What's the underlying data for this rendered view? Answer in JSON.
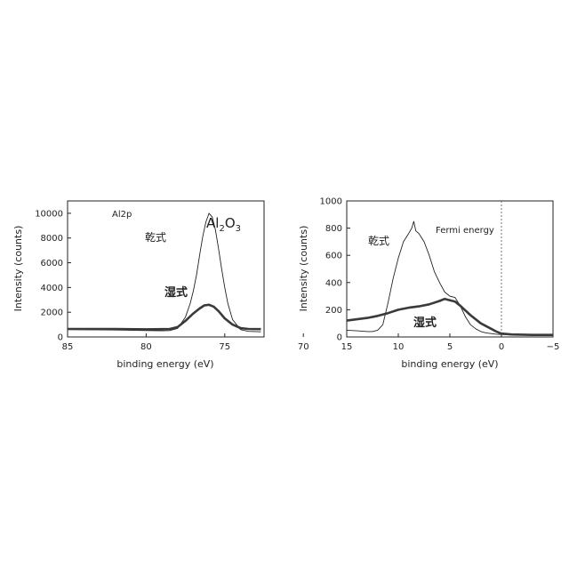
{
  "chart_data": [
    {
      "type": "line",
      "title": "",
      "xlabel": "binding energy (eV)",
      "ylabel": "Intensity (counts)",
      "xlim": [
        85,
        72.5
      ],
      "ylim": [
        0,
        11000
      ],
      "x_ticks": [
        "85",
        "80",
        "75",
        "70"
      ],
      "y_ticks": [
        "0",
        "2000",
        "4000",
        "6000",
        "8000",
        "10000"
      ],
      "annotations": {
        "core_level": "Al2p",
        "species_main": "Al",
        "species_sub1": "2",
        "species_o": "O",
        "species_sub2": "3",
        "dry_label": "乾式",
        "wet_label": "湿式"
      },
      "series": [
        {
          "name": "乾式",
          "style": "thin",
          "x": [
            85,
            82,
            80,
            79,
            78.5,
            78,
            77.5,
            77.2,
            77,
            76.8,
            76.6,
            76.4,
            76.2,
            76.0,
            75.8,
            75.6,
            75.4,
            75.2,
            75.0,
            74.8,
            74.5,
            74.0,
            73.5,
            72.7
          ],
          "y": [
            600,
            560,
            520,
            500,
            520,
            700,
            1600,
            2700,
            3700,
            5000,
            6600,
            8100,
            9300,
            10000,
            9700,
            8700,
            7200,
            5500,
            4000,
            2700,
            1400,
            600,
            450,
            420
          ]
        },
        {
          "name": "湿式",
          "style": "thick",
          "x": [
            85,
            82,
            80,
            78.5,
            78,
            77.5,
            77,
            76.6,
            76.3,
            76.0,
            75.7,
            75.4,
            75.0,
            74.5,
            74.0,
            73.5,
            72.7
          ],
          "y": [
            650,
            650,
            620,
            650,
            800,
            1300,
            1900,
            2300,
            2550,
            2600,
            2450,
            2100,
            1500,
            1000,
            720,
            650,
            630
          ]
        }
      ]
    },
    {
      "type": "line",
      "title": "",
      "xlabel": "binding energy (eV)",
      "ylabel": "Intensity (counts)",
      "xlim": [
        15,
        -5
      ],
      "ylim": [
        0,
        1000
      ],
      "x_ticks": [
        "15",
        "10",
        "5",
        "0",
        "−5"
      ],
      "y_ticks": [
        "0",
        "200",
        "400",
        "600",
        "800",
        "1000"
      ],
      "fermi_energy": 0,
      "annotations": {
        "fermi_label": "Fermi energy",
        "dry_label": "乾式",
        "wet_label": "湿式"
      },
      "series": [
        {
          "name": "乾式",
          "style": "thin",
          "x": [
            15,
            14,
            13,
            12.5,
            12,
            11.5,
            11,
            10.5,
            10,
            9.5,
            9,
            8.7,
            8.5,
            8.3,
            8,
            7.5,
            7,
            6.5,
            6,
            5.5,
            5,
            4.5,
            4,
            3.5,
            3,
            2.5,
            2,
            1.5,
            1,
            0.5,
            0,
            -1,
            -3,
            -5
          ],
          "y": [
            50,
            45,
            40,
            40,
            50,
            90,
            250,
            430,
            580,
            700,
            760,
            800,
            850,
            780,
            760,
            700,
            600,
            480,
            400,
            330,
            300,
            290,
            230,
            150,
            90,
            60,
            40,
            30,
            25,
            20,
            18,
            15,
            15,
            15
          ]
        },
        {
          "name": "湿式",
          "style": "thick",
          "x": [
            15,
            14,
            13,
            12,
            11,
            10,
            9,
            8,
            7,
            6,
            5.5,
            5,
            4.5,
            4,
            3,
            2,
            1,
            0.5,
            0,
            -1,
            -3,
            -5
          ],
          "y": [
            120,
            130,
            140,
            155,
            175,
            200,
            215,
            225,
            240,
            265,
            280,
            270,
            260,
            230,
            160,
            100,
            60,
            40,
            25,
            18,
            15,
            15
          ]
        }
      ]
    }
  ]
}
